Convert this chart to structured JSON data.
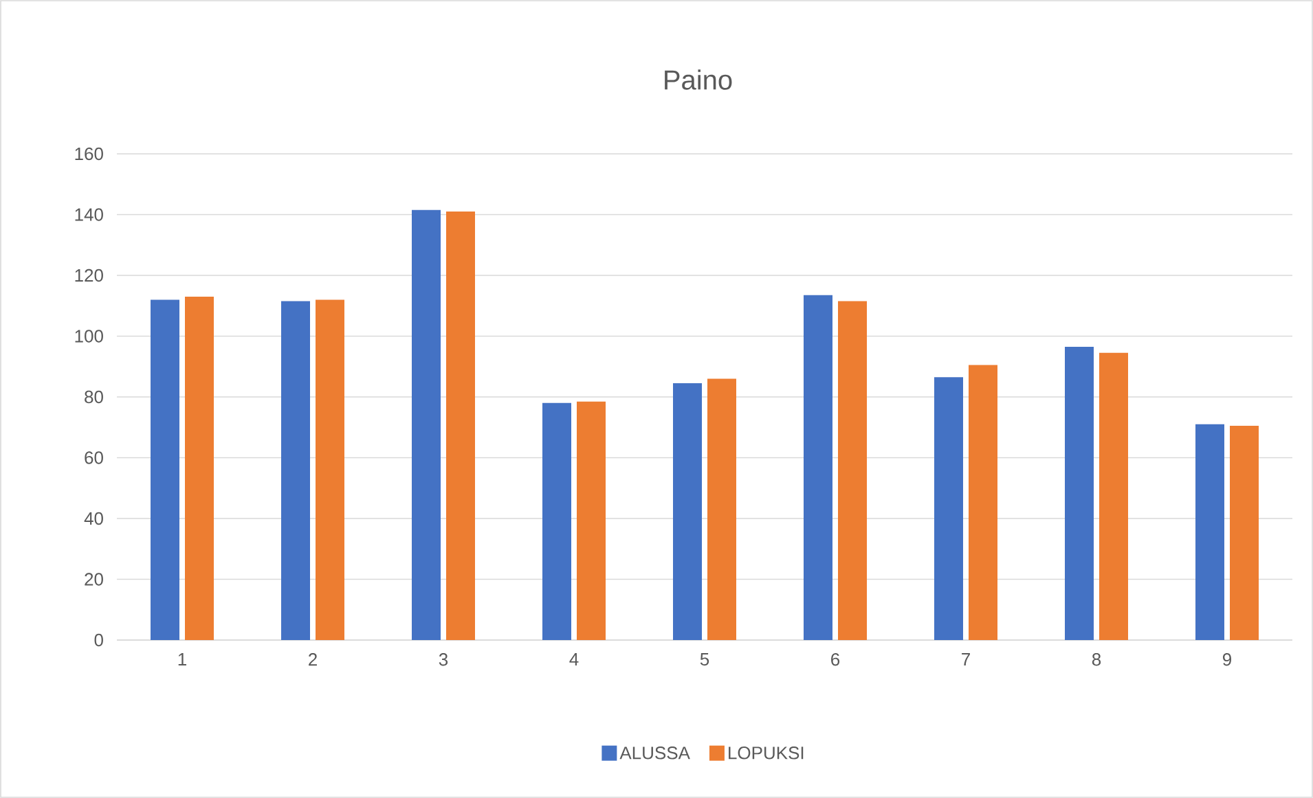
{
  "chart_data": {
    "type": "bar",
    "title": "Paino",
    "categories": [
      "1",
      "2",
      "3",
      "4",
      "5",
      "6",
      "7",
      "8",
      "9"
    ],
    "series": [
      {
        "name": "ALUSSA",
        "color": "#4472c4",
        "values": [
          112,
          111.5,
          141.5,
          78,
          84.5,
          113.5,
          86.5,
          96.5,
          71
        ]
      },
      {
        "name": "LOPUKSI",
        "color": "#ed7d31",
        "values": [
          113,
          112,
          141,
          78.5,
          86,
          111.5,
          90.5,
          94.5,
          70.5
        ]
      }
    ],
    "ylim": [
      0,
      160
    ],
    "yticks": [
      0,
      20,
      40,
      60,
      80,
      100,
      120,
      140,
      160
    ],
    "grid": "y",
    "legend": "bottom"
  }
}
